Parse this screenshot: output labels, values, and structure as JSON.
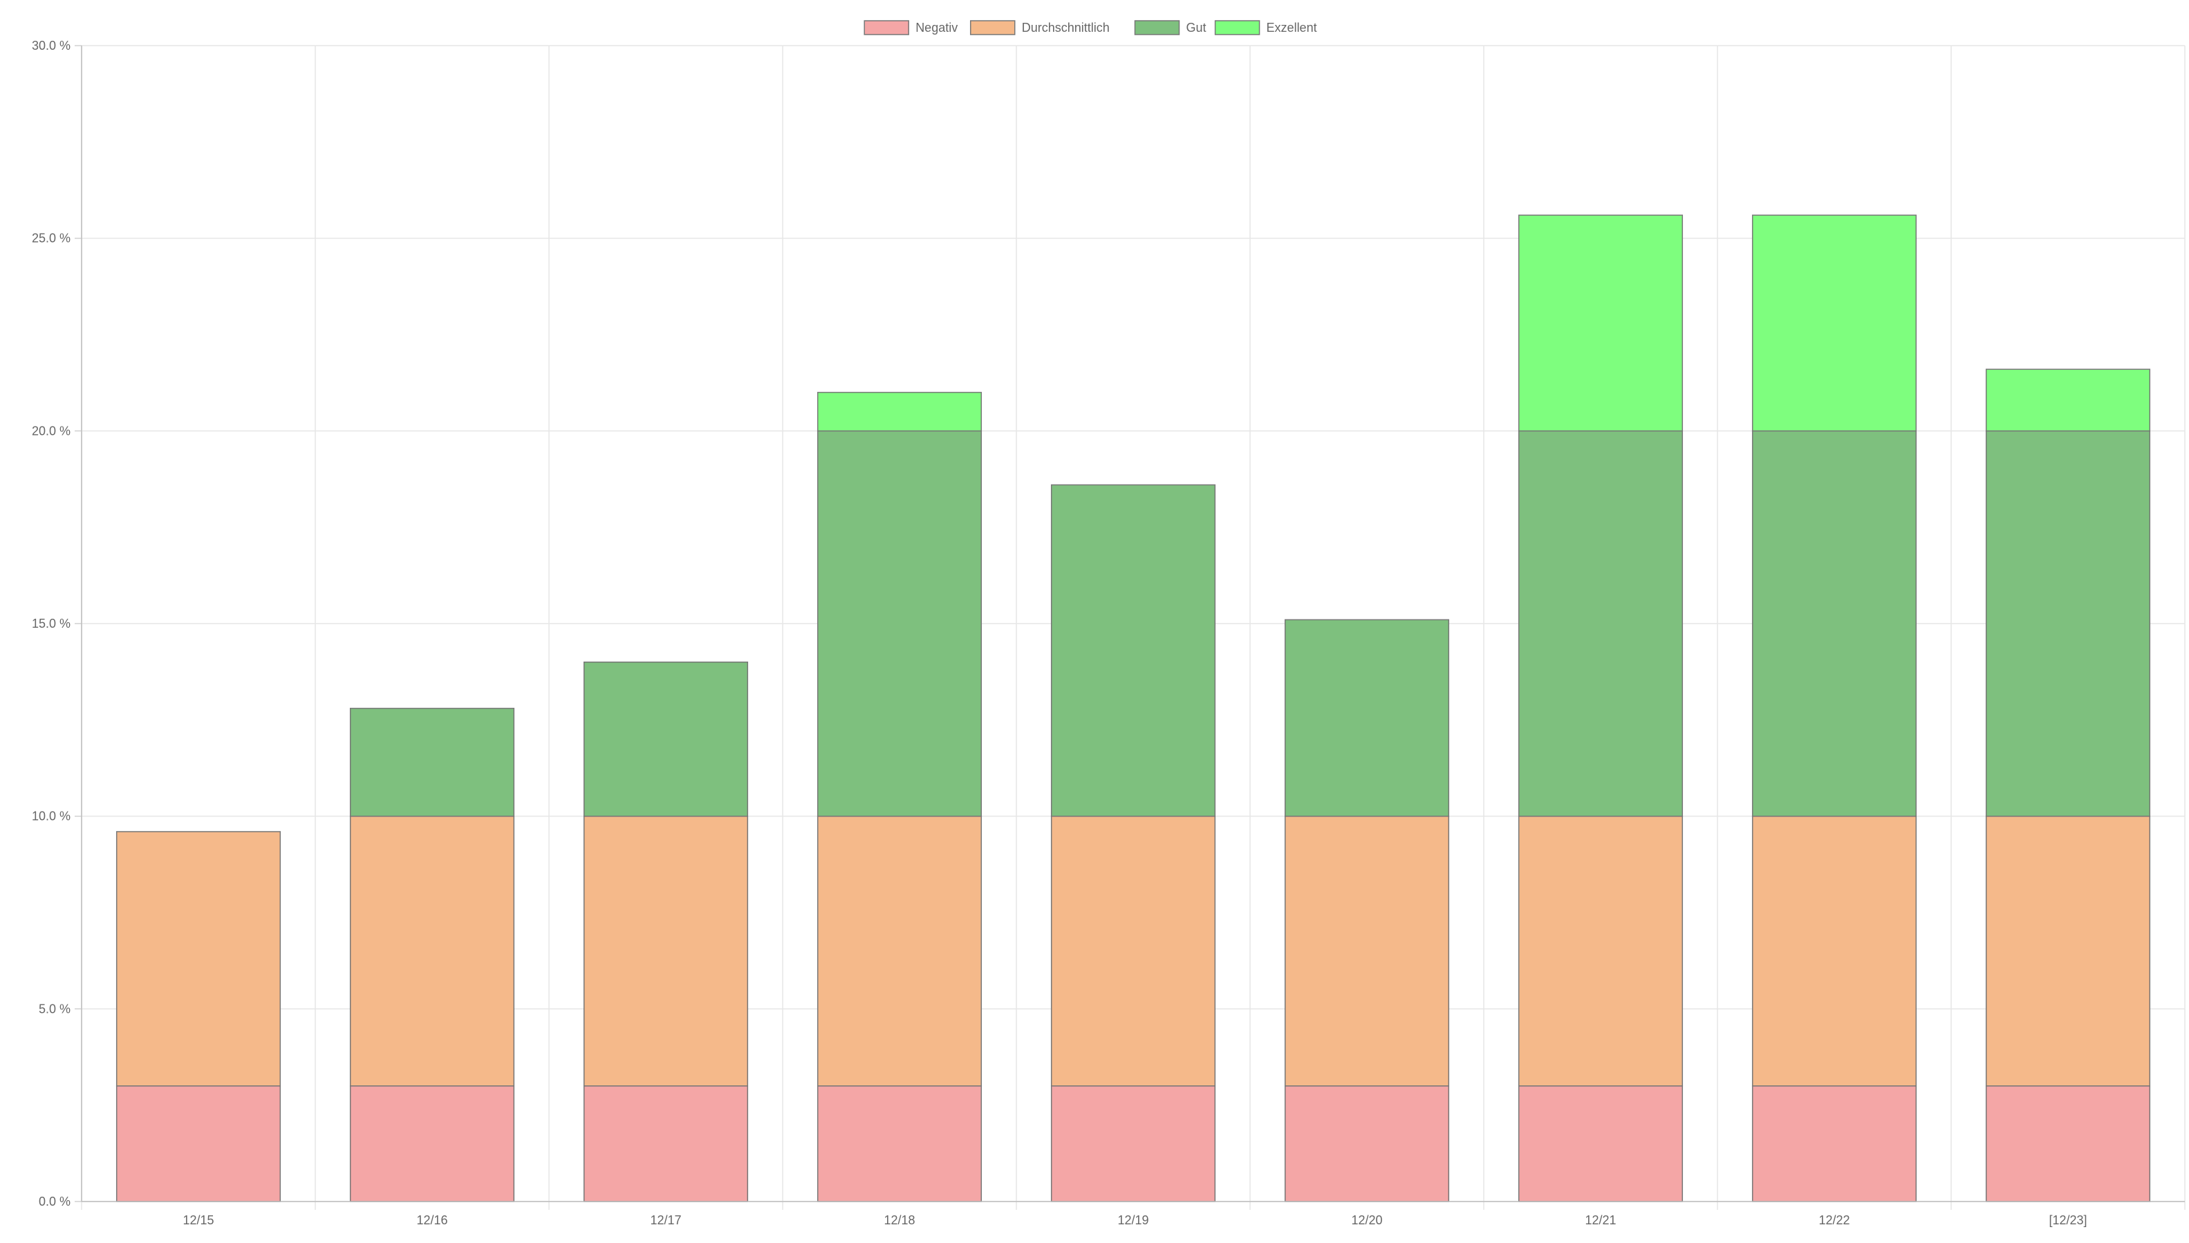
{
  "chart_data": {
    "type": "bar",
    "stacked": true,
    "title": "",
    "xlabel": "",
    "ylabel": "",
    "ylim": [
      0,
      30
    ],
    "ytick_step": 5,
    "ytick_format": "{v} %",
    "grid": true,
    "legend_position": "top",
    "categories": [
      "12/15",
      "12/16",
      "12/17",
      "12/18",
      "12/19",
      "12/20",
      "12/21",
      "12/22",
      "[12/23]"
    ],
    "series": [
      {
        "name": "Negativ",
        "color": "#f4a6a6",
        "values": [
          3,
          3,
          3,
          3,
          3,
          3,
          3,
          3,
          3
        ]
      },
      {
        "name": "Durchschnittlich",
        "color": "#f5b98a",
        "values": [
          6.6,
          7,
          7,
          7,
          7,
          7,
          7,
          7,
          7
        ]
      },
      {
        "name": "Gut",
        "color": "#7ec07e",
        "values": [
          0,
          2.8,
          4,
          10,
          8.6,
          5.1,
          10,
          10,
          10
        ]
      },
      {
        "name": "Exzellent",
        "color": "#7efe7e",
        "values": [
          0,
          0,
          0,
          1,
          0,
          0,
          5.6,
          5.6,
          1.6
        ]
      }
    ]
  }
}
